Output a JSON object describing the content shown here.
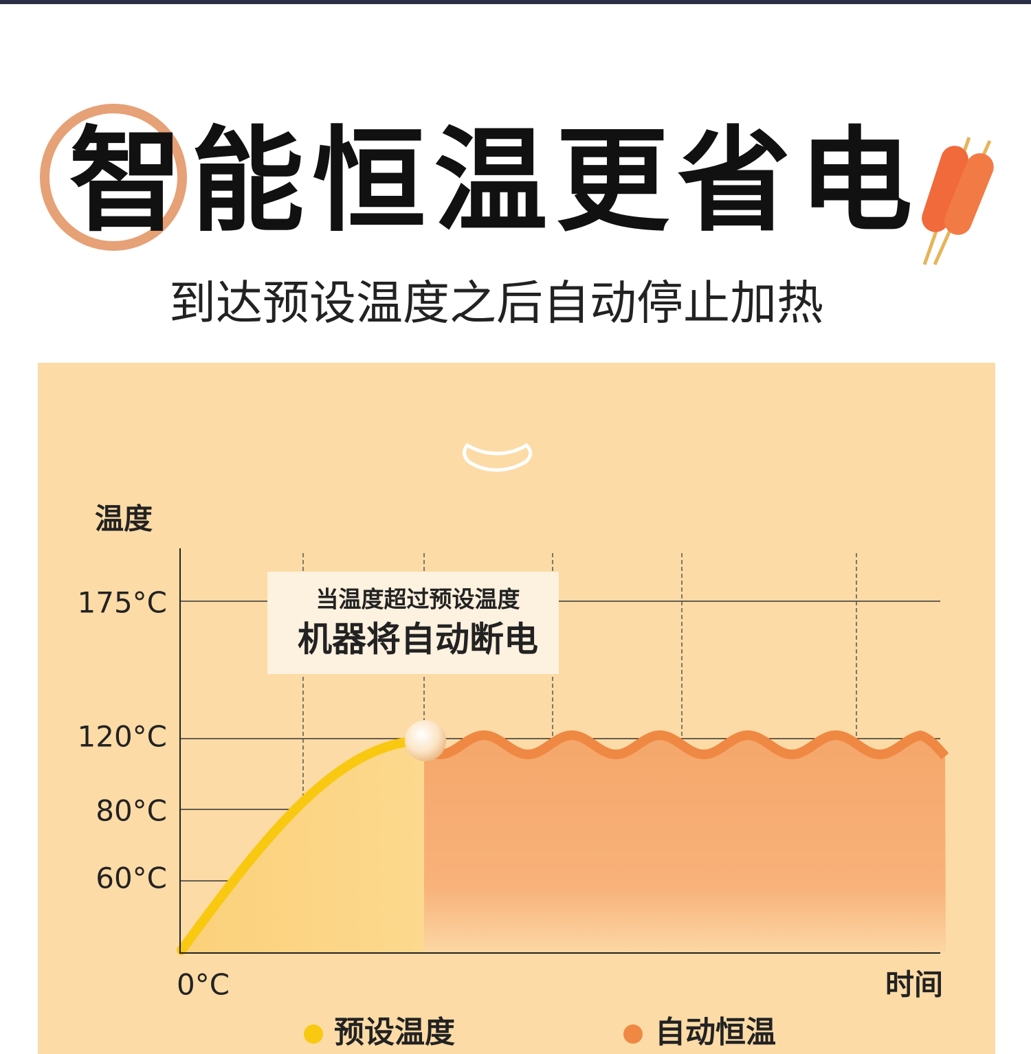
{
  "header": {
    "title": "智能恒温更省电",
    "subtitle": "到达预设温度之后自动停止加热"
  },
  "chart": {
    "y_label": "温度",
    "x_label": "时间",
    "ticks": [
      "175°C",
      "120°C",
      "80°C",
      "60°C",
      "0°C"
    ],
    "callout": {
      "line1": "当温度超过预设温度",
      "line2": "机器将自动断电"
    },
    "legend": [
      "预设温度",
      "自动恒温"
    ]
  }
}
